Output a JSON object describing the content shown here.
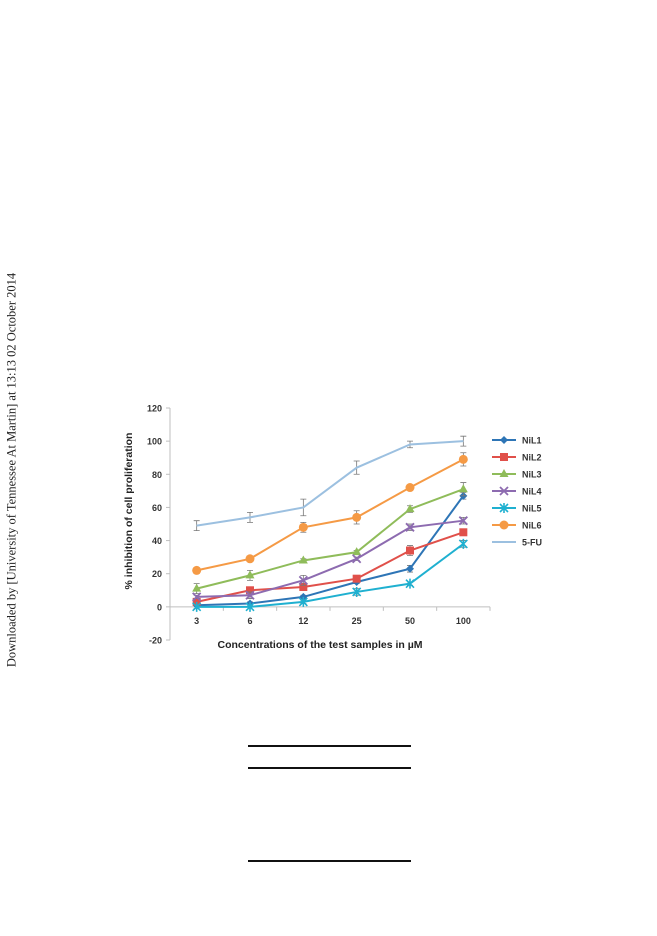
{
  "side_note": "Downloaded by [University of Tennessee At Martin] at 13:13 02 October 2014",
  "chart_data": {
    "type": "line",
    "title": "",
    "xlabel": "Concentrations of the test samples in µM",
    "ylabel": "% inhibition of cell proliferation",
    "categories": [
      "3",
      "6",
      "12",
      "25",
      "50",
      "100"
    ],
    "ylim": [
      -20,
      120
    ],
    "yticks": [
      -20,
      0,
      20,
      40,
      60,
      80,
      100,
      120
    ],
    "grid": false,
    "legend_position": "right",
    "series": [
      {
        "name": "NiL1",
        "color": "#2e75b6",
        "marker": "diamond",
        "values": [
          1,
          2,
          6,
          15,
          23,
          67
        ],
        "errors": [
          0,
          1,
          1,
          1,
          2,
          2
        ]
      },
      {
        "name": "NiL2",
        "color": "#e0504a",
        "marker": "square",
        "values": [
          3,
          10,
          12,
          17,
          34,
          45
        ],
        "errors": [
          1,
          2,
          1,
          1,
          3,
          2
        ]
      },
      {
        "name": "NiL3",
        "color": "#8fbc5a",
        "marker": "triangle",
        "values": [
          11,
          19,
          28,
          33,
          59,
          71
        ],
        "errors": [
          3,
          3,
          1,
          1,
          2,
          4
        ]
      },
      {
        "name": "NiL4",
        "color": "#8d6bb0",
        "marker": "x",
        "values": [
          6,
          7,
          16,
          29,
          48,
          52
        ],
        "errors": [
          1,
          2,
          3,
          1,
          2,
          2
        ]
      },
      {
        "name": "NiL5",
        "color": "#1fb0d0",
        "marker": "star",
        "values": [
          0,
          0,
          3,
          9,
          14,
          38
        ],
        "errors": [
          1,
          0,
          1,
          2,
          1,
          2
        ]
      },
      {
        "name": "NiL6",
        "color": "#f59a45",
        "marker": "circle",
        "values": [
          22,
          29,
          48,
          54,
          72,
          89
        ],
        "errors": [
          1,
          1,
          3,
          4,
          1,
          4
        ]
      },
      {
        "name": "5-FU",
        "color": "#9cc0e0",
        "marker": "none",
        "values": [
          49,
          54,
          60,
          84,
          98,
          100
        ],
        "errors": [
          3,
          3,
          5,
          4,
          2,
          3
        ]
      }
    ]
  }
}
